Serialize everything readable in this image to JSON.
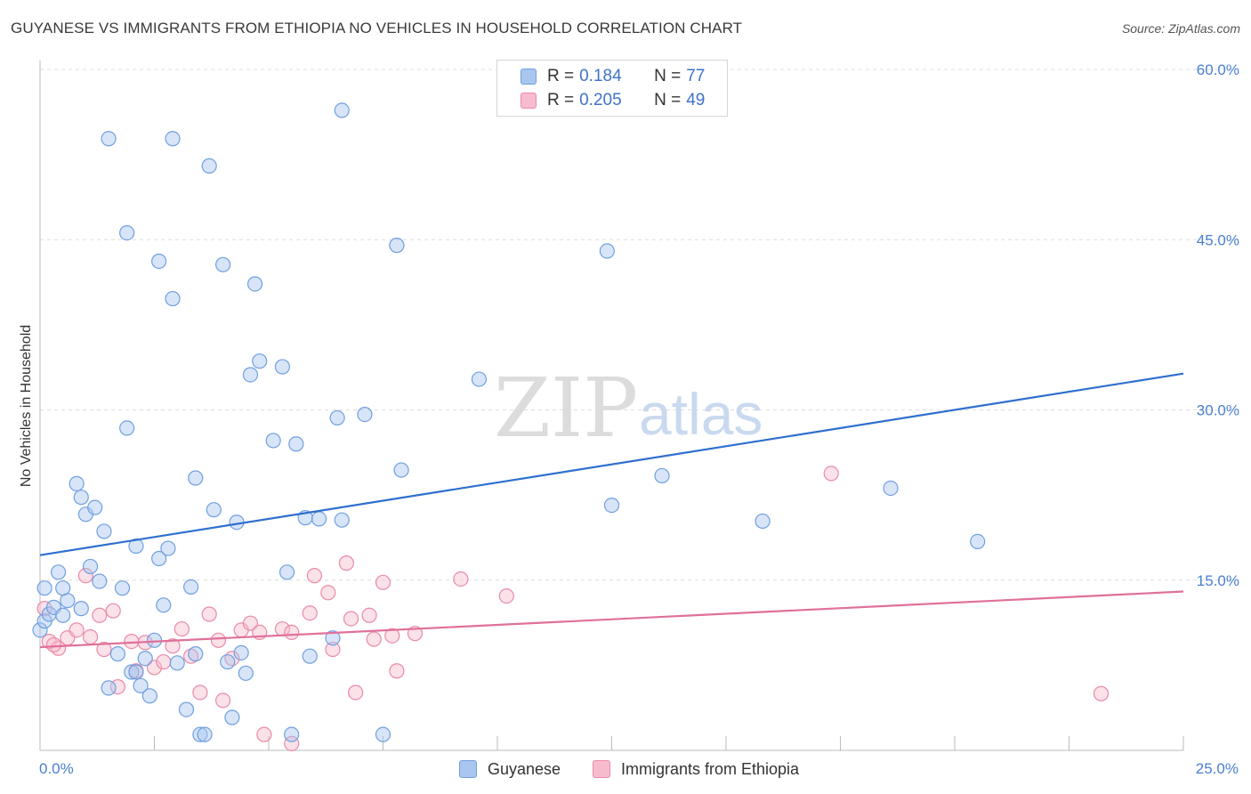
{
  "header": {
    "title": "GUYANESE VS IMMIGRANTS FROM ETHIOPIA NO VEHICLES IN HOUSEHOLD CORRELATION CHART",
    "source": "Source: ZipAtlas.com"
  },
  "watermark": {
    "zip": "ZIP",
    "atlas": "atlas"
  },
  "legend": {
    "rows": [
      {
        "r_label": "R =",
        "r_value": "0.184",
        "n_label": "N =",
        "n_value": "77"
      },
      {
        "r_label": "R =",
        "r_value": "0.205",
        "n_label": "N =",
        "n_value": "49"
      }
    ]
  },
  "bottom_legend": {
    "items": [
      {
        "label": "Guyanese"
      },
      {
        "label": "Immigrants from Ethiopia"
      }
    ]
  },
  "colors": {
    "guyanese_fill": "#a9c6ef",
    "guyanese_stroke": "#6f9fe0",
    "guyanese_line": "#2f6fcf",
    "ethiopia_fill": "#f6bccd",
    "ethiopia_stroke": "#e98aa8",
    "ethiopia_line": "#e0709a",
    "tick_text": "#4a7fd0",
    "grid": "#dddddd"
  },
  "chart_data": {
    "type": "scatter",
    "ylabel": "No Vehicles in Household",
    "xlim": [
      0,
      25
    ],
    "ylim": [
      0,
      60
    ],
    "x_tick_labels": [
      "0.0%",
      "25.0%"
    ],
    "y_ticks": [
      15,
      30,
      45,
      60
    ],
    "y_tick_labels": [
      "15.0%",
      "30.0%",
      "45.0%",
      "60.0%"
    ],
    "grid": true,
    "legend_position": "top-center",
    "series": [
      {
        "name": "Guyanese",
        "R": 0.184,
        "N": 77,
        "trend": {
          "x": [
            0,
            25
          ],
          "y": [
            17.2,
            33.2
          ]
        },
        "points": [
          [
            0.0,
            10.6
          ],
          [
            0.1,
            11.4
          ],
          [
            0.1,
            14.3
          ],
          [
            0.2,
            12.0
          ],
          [
            0.3,
            12.6
          ],
          [
            0.4,
            15.7
          ],
          [
            0.5,
            11.9
          ],
          [
            0.6,
            13.2
          ],
          [
            0.8,
            23.5
          ],
          [
            0.9,
            22.3
          ],
          [
            0.9,
            12.5
          ],
          [
            1.0,
            20.8
          ],
          [
            1.1,
            16.2
          ],
          [
            1.2,
            21.4
          ],
          [
            1.3,
            14.9
          ],
          [
            1.4,
            19.3
          ],
          [
            1.5,
            5.5
          ],
          [
            1.7,
            8.5
          ],
          [
            1.8,
            14.3
          ],
          [
            1.9,
            28.4
          ],
          [
            1.9,
            45.6
          ],
          [
            2.0,
            6.9
          ],
          [
            2.1,
            18.0
          ],
          [
            2.2,
            5.7
          ],
          [
            2.3,
            8.1
          ],
          [
            2.4,
            4.8
          ],
          [
            2.5,
            9.7
          ],
          [
            2.6,
            16.9
          ],
          [
            2.6,
            43.1
          ],
          [
            2.7,
            12.8
          ],
          [
            2.8,
            17.8
          ],
          [
            2.9,
            39.8
          ],
          [
            3.0,
            7.7
          ],
          [
            3.2,
            3.6
          ],
          [
            3.3,
            14.4
          ],
          [
            3.4,
            8.5
          ],
          [
            3.4,
            24.0
          ],
          [
            3.5,
            1.4
          ],
          [
            3.6,
            1.4
          ],
          [
            3.7,
            51.5
          ],
          [
            3.8,
            21.2
          ],
          [
            4.0,
            42.8
          ],
          [
            4.1,
            7.8
          ],
          [
            4.2,
            2.9
          ],
          [
            4.3,
            20.1
          ],
          [
            4.4,
            8.6
          ],
          [
            4.5,
            6.8
          ],
          [
            4.6,
            33.1
          ],
          [
            4.7,
            41.1
          ],
          [
            4.8,
            34.3
          ],
          [
            5.1,
            27.3
          ],
          [
            5.3,
            33.8
          ],
          [
            5.4,
            15.7
          ],
          [
            5.5,
            1.4
          ],
          [
            5.6,
            27.0
          ],
          [
            5.8,
            20.5
          ],
          [
            5.9,
            8.3
          ],
          [
            6.1,
            20.4
          ],
          [
            6.4,
            9.9
          ],
          [
            6.5,
            29.3
          ],
          [
            6.6,
            20.3
          ],
          [
            6.6,
            56.4
          ],
          [
            7.1,
            29.6
          ],
          [
            7.5,
            1.4
          ],
          [
            7.8,
            44.5
          ],
          [
            7.9,
            24.7
          ],
          [
            9.6,
            32.7
          ],
          [
            12.4,
            44.0
          ],
          [
            12.5,
            21.6
          ],
          [
            13.6,
            24.2
          ],
          [
            15.8,
            20.2
          ],
          [
            18.6,
            23.1
          ],
          [
            20.5,
            18.4
          ],
          [
            1.5,
            53.9
          ],
          [
            2.9,
            53.9
          ],
          [
            0.5,
            14.3
          ],
          [
            2.1,
            6.9
          ]
        ]
      },
      {
        "name": "Immigrants from Ethiopia",
        "R": 0.205,
        "N": 49,
        "trend": {
          "x": [
            0,
            25
          ],
          "y": [
            9.1,
            14.0
          ]
        },
        "points": [
          [
            0.1,
            12.5
          ],
          [
            0.2,
            9.6
          ],
          [
            0.4,
            9.0
          ],
          [
            0.6,
            9.9
          ],
          [
            0.8,
            10.6
          ],
          [
            1.0,
            15.4
          ],
          [
            1.1,
            10.0
          ],
          [
            1.3,
            11.9
          ],
          [
            1.4,
            8.9
          ],
          [
            1.6,
            12.3
          ],
          [
            1.7,
            5.6
          ],
          [
            2.0,
            9.6
          ],
          [
            2.1,
            7.0
          ],
          [
            2.3,
            9.5
          ],
          [
            2.5,
            7.3
          ],
          [
            2.7,
            7.8
          ],
          [
            2.9,
            9.2
          ],
          [
            3.1,
            10.7
          ],
          [
            3.3,
            8.3
          ],
          [
            3.5,
            5.1
          ],
          [
            3.7,
            12.0
          ],
          [
            3.9,
            9.7
          ],
          [
            4.0,
            4.4
          ],
          [
            4.2,
            8.1
          ],
          [
            4.4,
            10.6
          ],
          [
            4.6,
            11.2
          ],
          [
            4.8,
            10.4
          ],
          [
            4.9,
            1.4
          ],
          [
            5.3,
            10.7
          ],
          [
            5.5,
            10.4
          ],
          [
            5.5,
            0.6
          ],
          [
            5.9,
            12.1
          ],
          [
            6.0,
            15.4
          ],
          [
            6.3,
            13.9
          ],
          [
            6.4,
            8.9
          ],
          [
            6.7,
            16.5
          ],
          [
            6.8,
            11.6
          ],
          [
            6.9,
            5.1
          ],
          [
            7.2,
            11.9
          ],
          [
            7.3,
            9.8
          ],
          [
            7.5,
            14.8
          ],
          [
            7.7,
            10.1
          ],
          [
            7.8,
            7.0
          ],
          [
            8.2,
            10.3
          ],
          [
            9.2,
            15.1
          ],
          [
            10.2,
            13.6
          ],
          [
            17.3,
            24.4
          ],
          [
            23.2,
            5.0
          ],
          [
            0.3,
            9.3
          ]
        ]
      }
    ]
  }
}
